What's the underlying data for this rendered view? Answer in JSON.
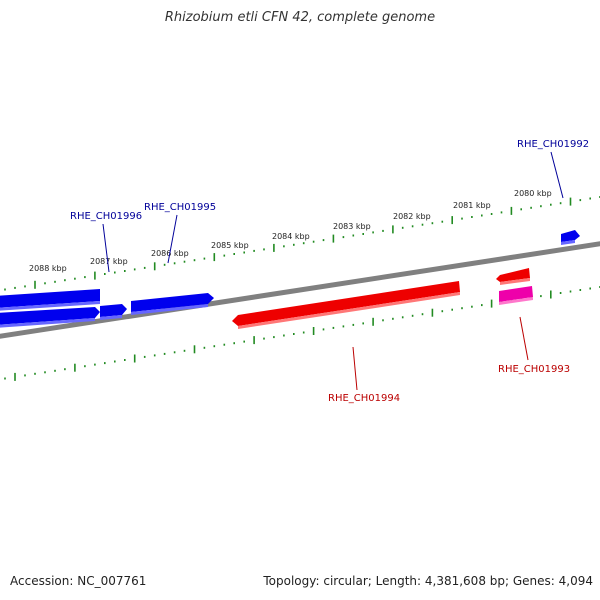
{
  "title": "Rhizobium etli CFN 42, complete genome",
  "footer": {
    "accession": "Accession: NC_007761",
    "summary": "Topology: circular; Length: 4,381,608 bp; Genes: 4,094"
  },
  "colors": {
    "forward_gene": "#0000ee",
    "reverse_gene": "#ee0000",
    "highlight_gene": "#ee00aa",
    "backbone": "#808080",
    "tick": "#228b22",
    "forward_label": "#000099",
    "reverse_label": "#bb0000"
  },
  "scale_labels": [
    "2088 kbp",
    "2087 kbp",
    "2086 kbp",
    "2085 kbp",
    "2084 kbp",
    "2083 kbp",
    "2082 kbp",
    "2081 kbp",
    "2080 kbp"
  ],
  "gene_labels": {
    "RHE_CH01996": "RHE_CH01996",
    "RHE_CH01995": "RHE_CH01995",
    "RHE_CH01992": "RHE_CH01992",
    "RHE_CH01994": "RHE_CH01994",
    "RHE_CH01993": "RHE_CH01993"
  }
}
